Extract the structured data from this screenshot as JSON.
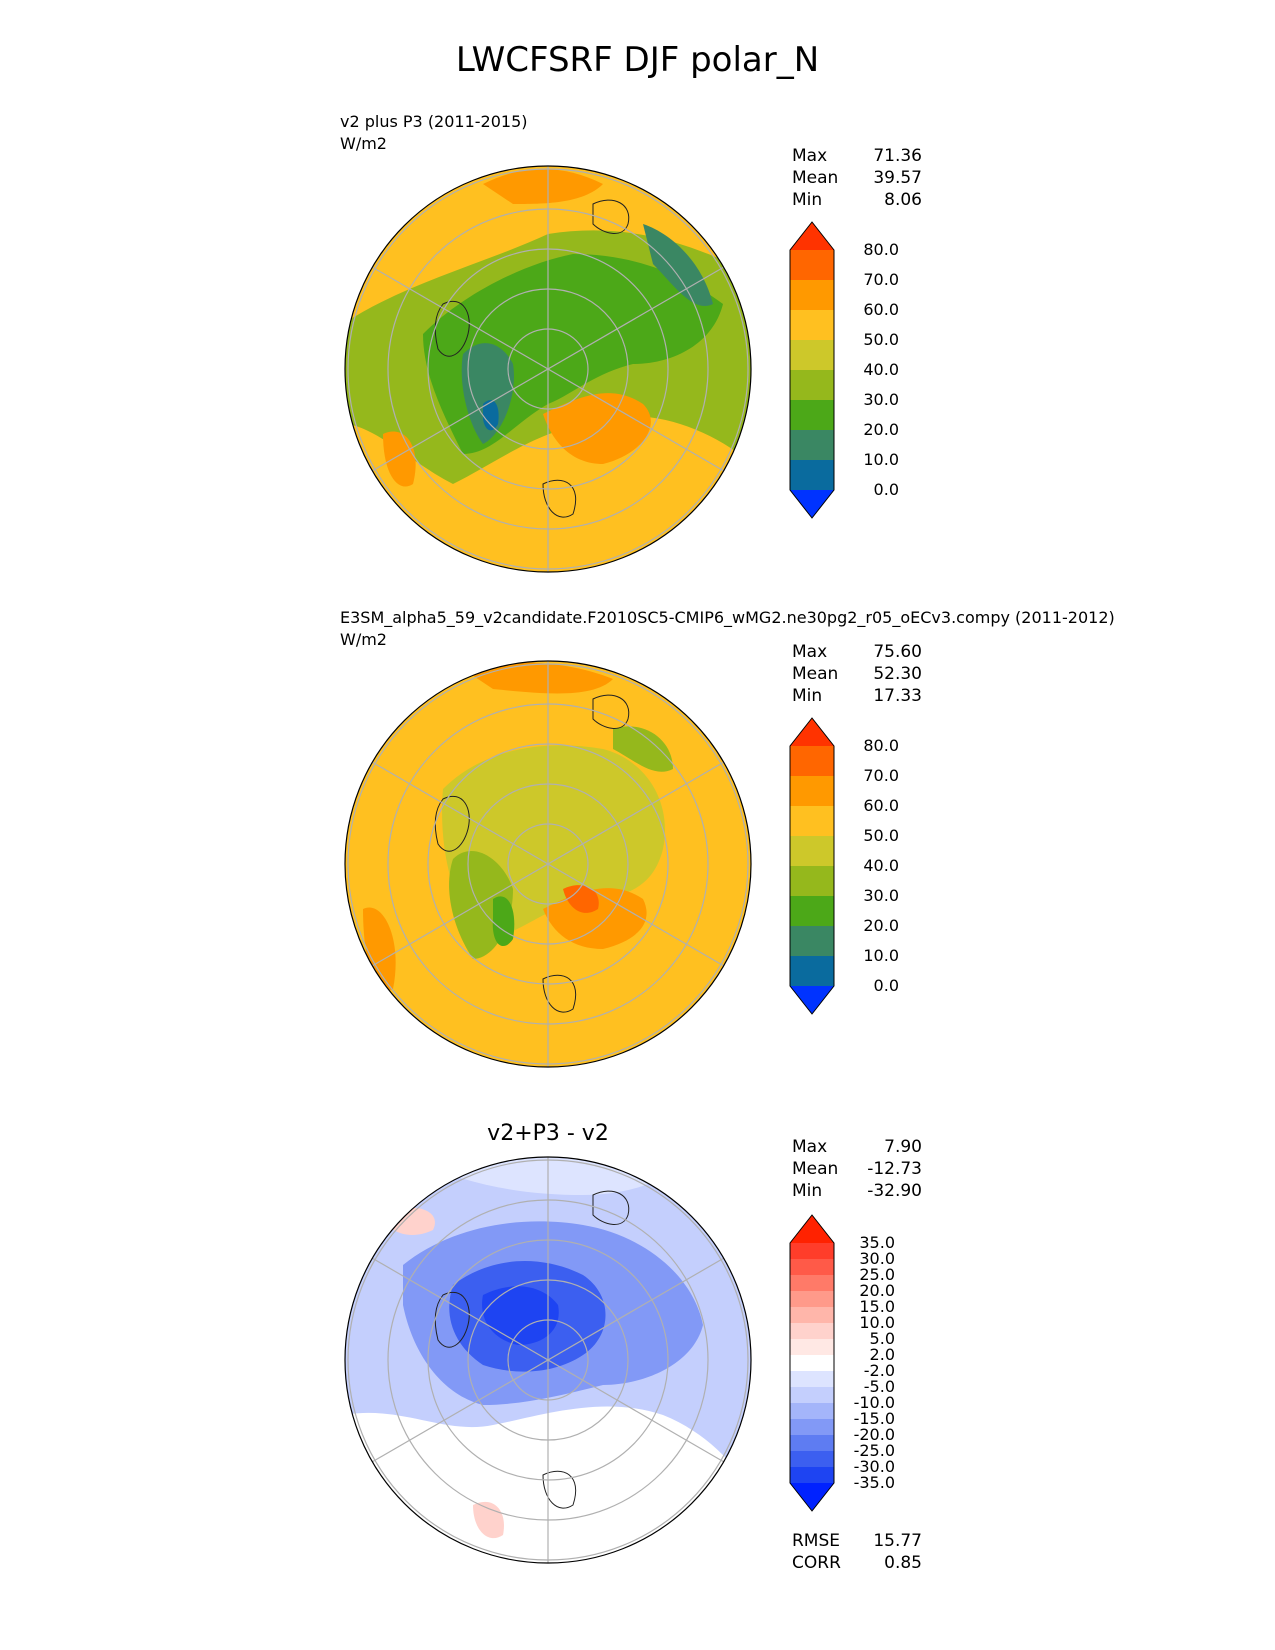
{
  "title": "LWCFSRF DJF polar_N",
  "panels": [
    {
      "id": "test",
      "subtitle": "v2 plus P3 (2011-2015)",
      "units": "W/m2",
      "stats": [
        {
          "label": "Max",
          "value": "71.36"
        },
        {
          "label": "Mean",
          "value": "39.57"
        },
        {
          "label": "Min",
          "value": "8.06"
        }
      ],
      "colorbar": {
        "levels": [
          "80.0",
          "70.0",
          "60.0",
          "50.0",
          "40.0",
          "30.0",
          "20.0",
          "10.0",
          "0.0"
        ],
        "colors": [
          "#ff3300",
          "#ff6600",
          "#ff9900",
          "#ffc020",
          "#cdc82a",
          "#95b81c",
          "#4ca818",
          "#3a8763",
          "#0a6b9e",
          "#0033ff"
        ]
      }
    },
    {
      "id": "ref",
      "subtitle": "E3SM_alpha5_59_v2candidate.F2010SC5-CMIP6_wMG2.ne30pg2_r05_oECv3.compy (2011-2012)",
      "units": "W/m2",
      "stats": [
        {
          "label": "Max",
          "value": "75.60"
        },
        {
          "label": "Mean",
          "value": "52.30"
        },
        {
          "label": "Min",
          "value": "17.33"
        }
      ],
      "colorbar": {
        "levels": [
          "80.0",
          "70.0",
          "60.0",
          "50.0",
          "40.0",
          "30.0",
          "20.0",
          "10.0",
          "0.0"
        ],
        "colors": [
          "#ff3300",
          "#ff6600",
          "#ff9900",
          "#ffc020",
          "#cdc82a",
          "#95b81c",
          "#4ca818",
          "#3a8763",
          "#0a6b9e",
          "#0033ff"
        ]
      }
    },
    {
      "id": "diff",
      "title": "v2+P3 - v2",
      "stats": [
        {
          "label": "Max",
          "value": "7.90"
        },
        {
          "label": "Mean",
          "value": "-12.73"
        },
        {
          "label": "Min",
          "value": "-32.90"
        }
      ],
      "colorbar": {
        "levels": [
          "35.0",
          "30.0",
          "25.0",
          "20.0",
          "15.0",
          "10.0",
          "5.0",
          "2.0",
          "-2.0",
          "-5.0",
          "-10.0",
          "-15.0",
          "-20.0",
          "-25.0",
          "-30.0",
          "-35.0"
        ],
        "colors": [
          "#ff2200",
          "#ff3d2a",
          "#ff5a48",
          "#ff7a68",
          "#ff9a8a",
          "#ffb6aa",
          "#ffd2cc",
          "#ffe8e4",
          "#ffffff",
          "#dde4ff",
          "#c4cffd",
          "#a4b5fa",
          "#8299f6",
          "#5e7cf2",
          "#3c5ff0",
          "#1e44f2",
          "#0022ff"
        ]
      },
      "metrics": [
        {
          "label": "RMSE",
          "value": "15.77"
        },
        {
          "label": "CORR",
          "value": "0.85"
        }
      ]
    }
  ],
  "chart_data": [
    {
      "type": "heatmap",
      "projection": "north-polar-stereographic",
      "title": "v2 plus P3 (2011-2015)",
      "units": "W/m2",
      "color_levels": [
        0,
        10,
        20,
        30,
        40,
        50,
        60,
        70,
        80
      ],
      "statistics": {
        "max": 71.36,
        "mean": 39.57,
        "min": 8.06
      }
    },
    {
      "type": "heatmap",
      "projection": "north-polar-stereographic",
      "title": "E3SM_alpha5_59_v2candidate.F2010SC5-CMIP6_wMG2.ne30pg2_r05_oECv3.compy (2011-2012)",
      "units": "W/m2",
      "color_levels": [
        0,
        10,
        20,
        30,
        40,
        50,
        60,
        70,
        80
      ],
      "statistics": {
        "max": 75.6,
        "mean": 52.3,
        "min": 17.33
      }
    },
    {
      "type": "heatmap",
      "projection": "north-polar-stereographic",
      "title": "v2+P3 - v2",
      "color_levels": [
        -35,
        -30,
        -25,
        -20,
        -15,
        -10,
        -5,
        -2,
        2,
        5,
        10,
        15,
        20,
        25,
        30,
        35
      ],
      "statistics": {
        "max": 7.9,
        "mean": -12.73,
        "min": -32.9,
        "rmse": 15.77,
        "corr": 0.85
      }
    }
  ]
}
